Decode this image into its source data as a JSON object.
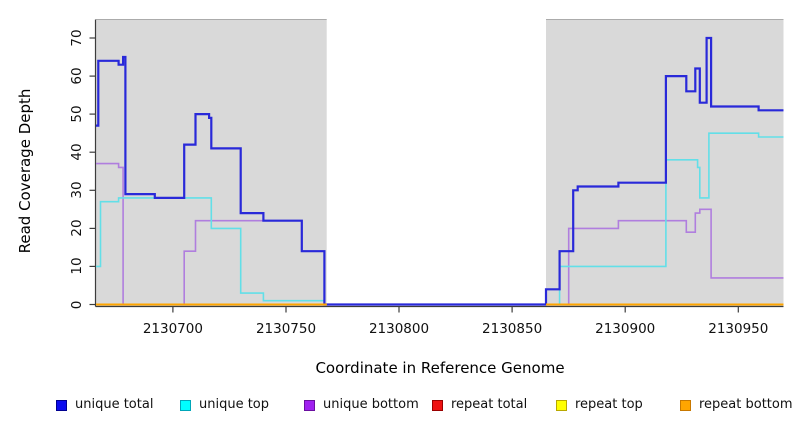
{
  "chart_data": {
    "type": "line",
    "step": true,
    "title": "",
    "xlabel": "Coordinate in Reference Genome",
    "ylabel": "Read Coverage Depth",
    "xlim": [
      2130666,
      2130970
    ],
    "ylim": [
      0,
      70
    ],
    "x_ticks": [
      2130700,
      2130750,
      2130800,
      2130850,
      2130900,
      2130950
    ],
    "y_ticks": [
      0,
      10,
      20,
      30,
      40,
      50,
      60,
      70
    ],
    "grid": false,
    "legend_position": "bottom",
    "plot_background": "#ffffff",
    "shaded_regions": [
      {
        "x0": 2130666,
        "x1": 2130768,
        "color": "#d9d9d9"
      },
      {
        "x0": 2130865,
        "x1": 2130970,
        "color": "#d9d9d9"
      }
    ],
    "draw_order": [
      2,
      1,
      0,
      3,
      4,
      5
    ],
    "series": [
      {
        "name": "unique total",
        "line_color": "#2929d9",
        "legend_color": "#0b0bee",
        "legend_border": "#000090",
        "line_width": 2.2,
        "paths": [
          [
            [
              2130666,
              47
            ],
            [
              2130667,
              64
            ],
            [
              2130676,
              63
            ],
            [
              2130678,
              65
            ],
            [
              2130679,
              29
            ],
            [
              2130692,
              28
            ],
            [
              2130705,
              42
            ],
            [
              2130710,
              50
            ],
            [
              2130716,
              49
            ],
            [
              2130717,
              41
            ],
            [
              2130730,
              24
            ],
            [
              2130740,
              22
            ],
            [
              2130757,
              14
            ],
            [
              2130767,
              0
            ],
            [
              2130865,
              4
            ],
            [
              2130871,
              14
            ],
            [
              2130877,
              30
            ],
            [
              2130879,
              31
            ],
            [
              2130897,
              32
            ],
            [
              2130918,
              60
            ],
            [
              2130927,
              56
            ],
            [
              2130931,
              62
            ],
            [
              2130933,
              53
            ],
            [
              2130936,
              70
            ],
            [
              2130938,
              52
            ],
            [
              2130959,
              51
            ],
            [
              2130970,
              51
            ]
          ]
        ]
      },
      {
        "name": "unique top",
        "line_color": "#62dfe8",
        "legend_color": "#00ffff",
        "legend_border": "#00a6b8",
        "line_width": 1.6,
        "paths": [
          [
            [
              2130666,
              10
            ],
            [
              2130668,
              27
            ],
            [
              2130676,
              28
            ],
            [
              2130717,
              20
            ],
            [
              2130730,
              3
            ],
            [
              2130740,
              1
            ],
            [
              2130767,
              0
            ],
            [
              2130871,
              10
            ],
            [
              2130918,
              38
            ],
            [
              2130932,
              36
            ],
            [
              2130933,
              28
            ],
            [
              2130937,
              45
            ],
            [
              2130959,
              44
            ],
            [
              2130970,
              44
            ]
          ]
        ]
      },
      {
        "name": "unique bottom",
        "line_color": "#b07ede",
        "legend_color": "#a020f0",
        "legend_border": "#6a0fa0",
        "line_width": 1.6,
        "paths": [
          [
            [
              2130666,
              37
            ],
            [
              2130676,
              36
            ],
            [
              2130678,
              0
            ],
            [
              2130705,
              14
            ],
            [
              2130710,
              22
            ],
            [
              2130757,
              14
            ],
            [
              2130767,
              0
            ],
            [
              2130875,
              20
            ],
            [
              2130897,
              22
            ],
            [
              2130927,
              19
            ],
            [
              2130931,
              24
            ],
            [
              2130933,
              25
            ],
            [
              2130938,
              7
            ],
            [
              2130970,
              7
            ]
          ]
        ]
      },
      {
        "name": "repeat total",
        "line_color": "#dd2222",
        "legend_color": "#ee1111",
        "legend_border": "#990000",
        "line_width": 1.2,
        "paths": [
          [
            [
              2130666,
              0
            ],
            [
              2130768,
              0
            ]
          ],
          [
            [
              2130865,
              0
            ],
            [
              2130970,
              0
            ]
          ]
        ]
      },
      {
        "name": "repeat top",
        "line_color": "#f0e020",
        "legend_color": "#ffff00",
        "legend_border": "#b8a800",
        "line_width": 1.2,
        "paths": [
          [
            [
              2130666,
              0
            ],
            [
              2130768,
              0
            ]
          ],
          [
            [
              2130865,
              0
            ],
            [
              2130970,
              0
            ]
          ]
        ]
      },
      {
        "name": "repeat bottom",
        "line_color": "#ffa500",
        "legend_color": "#ffa500",
        "legend_border": "#c87800",
        "line_width": 2,
        "paths": [
          [
            [
              2130666,
              0
            ],
            [
              2130768,
              0
            ]
          ],
          [
            [
              2130865,
              0
            ],
            [
              2130970,
              0
            ]
          ]
        ]
      }
    ]
  },
  "colors": {
    "shade": "#d9d9d9",
    "shade_top_border": "#ababab",
    "axis": "#3c3c3c",
    "text": "#111111"
  }
}
